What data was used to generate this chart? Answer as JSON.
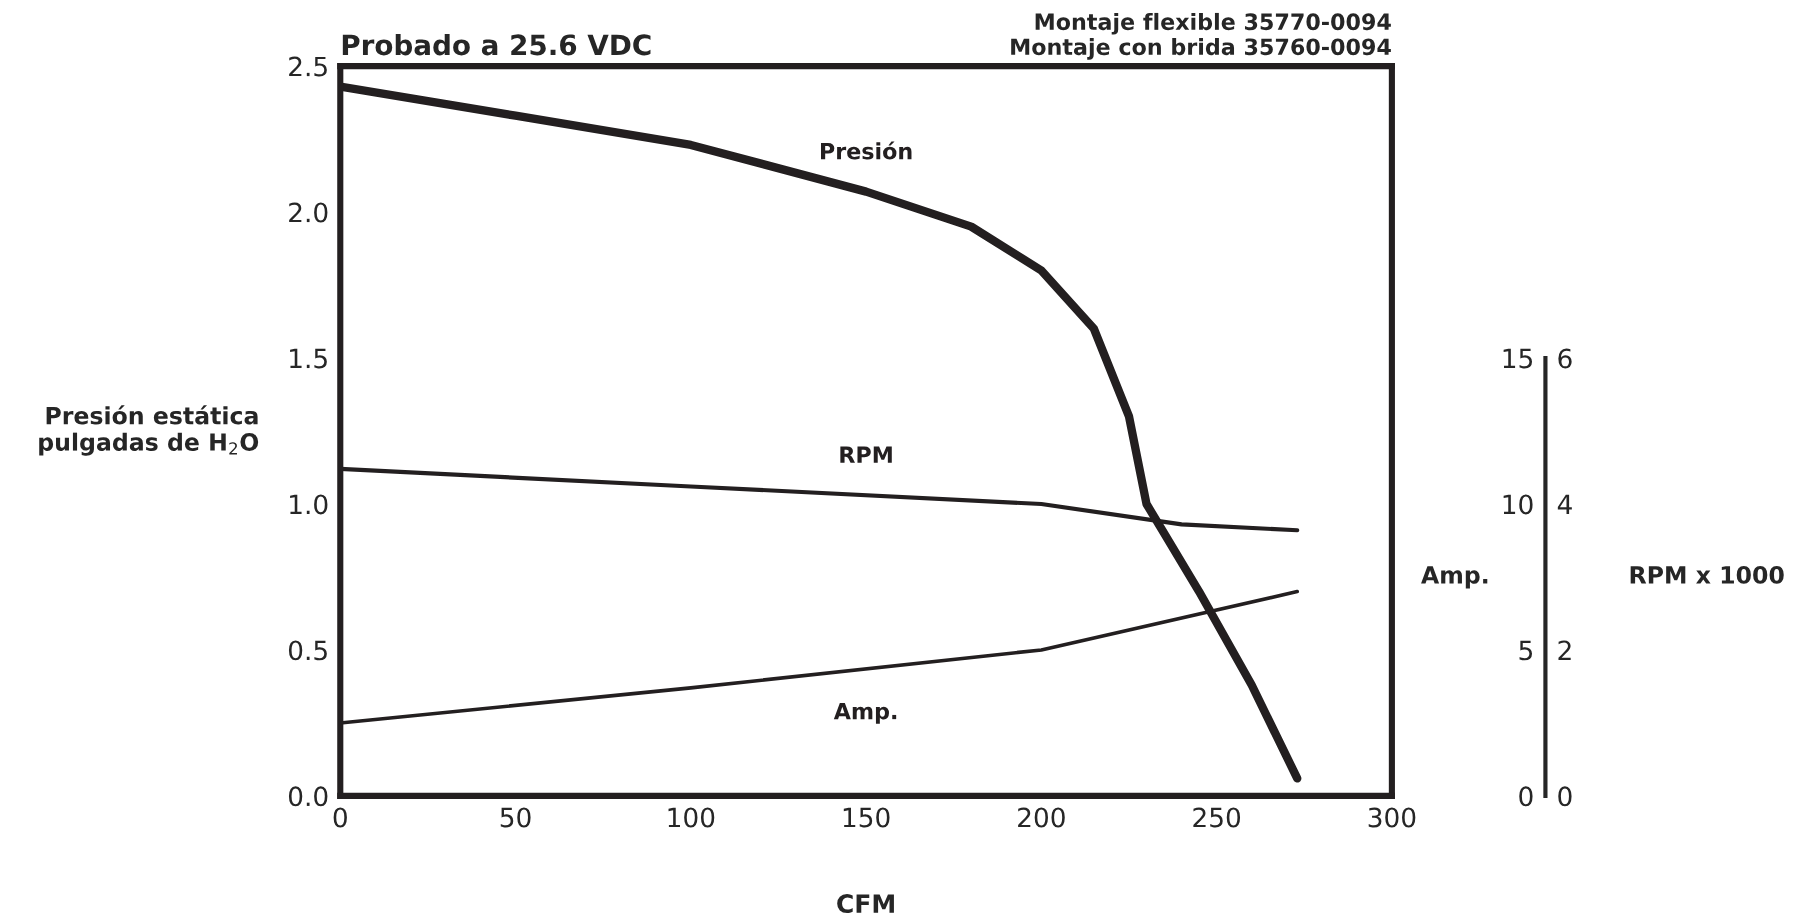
{
  "chart_data": {
    "type": "line",
    "title": "Probado a 25.6 VDC",
    "subtitle": "Montaje flexible 35770-0094\nMontaje con brida 35760-0094",
    "xlabel": "CFM",
    "ylabel": "Presión estática\npulgadas de H$_{2}$O",
    "y2label": "Amp.",
    "y3label": "RPM x 1000",
    "xlim": [
      0,
      300
    ],
    "xticks": [
      0,
      50,
      100,
      150,
      200,
      250,
      300
    ],
    "ylim": [
      0,
      2.5
    ],
    "yticks": [
      {
        "value": 0,
        "label": "0.0"
      },
      {
        "value": 0.5,
        "label": "0.5"
      },
      {
        "value": 1,
        "label": "1.0"
      },
      {
        "value": 1.5,
        "label": "1.5"
      },
      {
        "value": 2,
        "label": "2.0"
      },
      {
        "value": 2.5,
        "label": "2.5"
      }
    ],
    "y2lim": [
      0,
      25
    ],
    "y2ticks": [
      0,
      5,
      10,
      15
    ],
    "y3lim": [
      0,
      10
    ],
    "y3ticks": [
      0,
      2,
      4,
      6
    ],
    "grid": false,
    "legend": false,
    "marker": "none",
    "line_style": "solid",
    "series": [
      {
        "name": "Presión",
        "color": "#231f20",
        "x": [
          0,
          50,
          100,
          150,
          180,
          200,
          215,
          225,
          230,
          235,
          245,
          260,
          273
        ],
        "values": [
          2.43,
          2.33,
          2.23,
          2.07,
          1.95,
          1.8,
          1.6,
          1.3,
          1.0,
          0.9,
          0.7,
          0.38,
          0.06
        ]
      },
      {
        "name": "RPM",
        "color": "#231f20",
        "axis": "y3",
        "x": [
          0,
          100,
          200,
          240,
          273
        ],
        "values": [
          4.48,
          4.24,
          4.0,
          3.72,
          3.64
        ]
      },
      {
        "name": "Amp.",
        "color": "#231f20",
        "axis": "y2",
        "x": [
          0,
          100,
          200,
          273
        ],
        "values": [
          2.5,
          3.7,
          5.0,
          7.0
        ]
      }
    ]
  }
}
